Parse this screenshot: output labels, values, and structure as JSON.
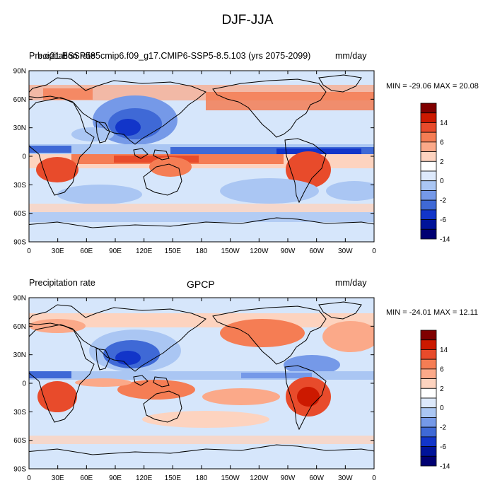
{
  "title": "DJF-JJA",
  "panels": [
    {
      "left_label": "Precipitation rate",
      "center_label": "b.e21.BSSP585cmip6.f09_g17.CMIP6-SSP5-8.5.103 (yrs 2075-2099)",
      "right_label": "mm/day",
      "minmax": "MIN = -29.06 MAX =  20.08"
    },
    {
      "left_label": "Precipitation rate",
      "center_label": "GPCP",
      "right_label": "mm/day",
      "minmax": "MIN = -24.01 MAX =  12.11"
    }
  ],
  "lat_labels": [
    "90N",
    "60N",
    "30N",
    "0",
    "30S",
    "60S",
    "90S"
  ],
  "lon_labels": [
    "0",
    "30E",
    "60E",
    "90E",
    "120E",
    "150E",
    "180",
    "150W",
    "120W",
    "90W",
    "60W",
    "30W",
    "0"
  ],
  "colorbar": {
    "labels": [
      "14",
      "6",
      "2",
      "0",
      "-2",
      "-6",
      "-14"
    ],
    "colors": [
      "#800000",
      "#cc1900",
      "#e84b2b",
      "#f57d54",
      "#fba989",
      "#fdd3bf",
      "#ffffff",
      "#dde9fb",
      "#aac6f3",
      "#7599e8",
      "#3f69d6",
      "#1235c9",
      "#001399",
      "#000072"
    ]
  },
  "colors": {
    "land_outline": "#000000",
    "ocean_base": "#d6e6fb"
  }
}
